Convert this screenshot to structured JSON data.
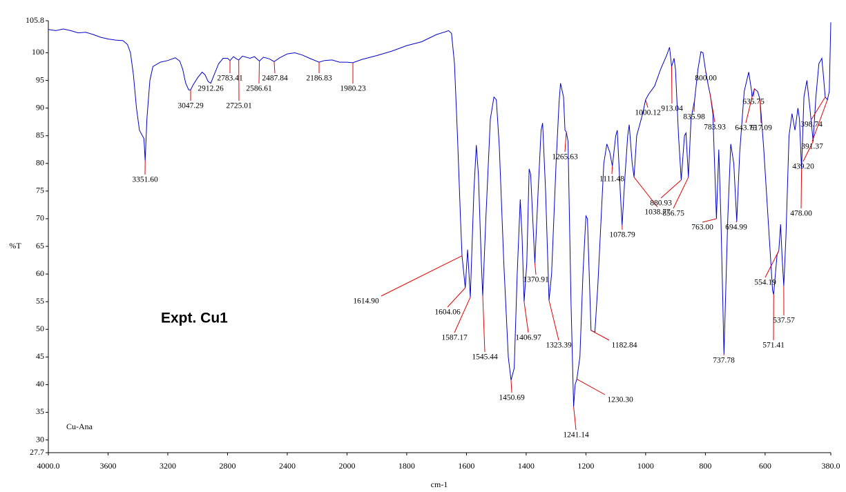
{
  "chart_data": {
    "type": "line",
    "xlabel": "cm-1",
    "ylabel": "%T",
    "annotations": [
      "Cu-Ana",
      "Expt. Cu1"
    ],
    "color": "#0000cc",
    "peak_color": "#e00000",
    "xlim": [
      4000,
      380
    ],
    "ylim": [
      27.7,
      105.8
    ],
    "xticks": [
      {
        "value": 4000,
        "label": "4000.0"
      },
      3600,
      3200,
      2800,
      2400,
      2000,
      1800,
      1600,
      1400,
      1200,
      1000,
      800,
      600,
      {
        "value": 380,
        "label": "380.0"
      }
    ],
    "yticks": [
      27.7,
      30,
      35,
      40,
      45,
      50,
      55,
      60,
      65,
      70,
      75,
      80,
      85,
      90,
      95,
      100,
      105.8
    ],
    "x": [
      4000,
      3950,
      3900,
      3850,
      3800,
      3750,
      3700,
      3650,
      3600,
      3550,
      3500,
      3470,
      3450,
      3430,
      3410,
      3390,
      3370,
      3360,
      3351.6,
      3340,
      3320,
      3300,
      3250,
      3200,
      3150,
      3120,
      3100,
      3080,
      3060,
      3047.29,
      3030,
      3000,
      2970,
      2950,
      2930,
      2912.26,
      2890,
      2860,
      2830,
      2800,
      2783.41,
      2760,
      2740,
      2725.01,
      2700,
      2650,
      2620,
      2586.61,
      2560,
      2520,
      2487.84,
      2450,
      2400,
      2350,
      2300,
      2250,
      2186.83,
      2150,
      2100,
      2050,
      2000,
      1980.23,
      1950,
      1900,
      1850,
      1800,
      1750,
      1700,
      1670,
      1660,
      1650,
      1640,
      1630,
      1620,
      1614.9,
      1604.06,
      1596,
      1587.17,
      1575,
      1567,
      1560,
      1550,
      1545.44,
      1535,
      1520,
      1508,
      1500,
      1490,
      1475,
      1460,
      1450.69,
      1440,
      1430,
      1420,
      1414,
      1406.97,
      1398,
      1390,
      1385,
      1378,
      1370.91,
      1360,
      1350,
      1345,
      1335,
      1323.39,
      1315,
      1300,
      1290,
      1285,
      1275,
      1270,
      1265.63,
      1260,
      1250,
      1241.14,
      1236,
      1230.3,
      1220,
      1210,
      1200,
      1195,
      1182.84,
      1170,
      1160,
      1140,
      1130,
      1120,
      1111.48,
      1100,
      1095,
      1085,
      1078.79,
      1070,
      1060,
      1055,
      1045,
      1038.77,
      1030,
      1010,
      1000.12,
      990,
      970,
      950,
      930,
      920,
      913.04,
      905,
      900,
      890,
      880.93,
      870,
      865,
      856.75,
      848,
      835.98,
      825,
      815,
      808,
      800,
      790,
      783.93,
      775,
      763,
      755,
      748,
      737.78,
      725,
      715,
      705,
      694.99,
      685,
      670,
      655,
      645,
      643.75,
      635.75,
      625,
      617.09,
      605,
      590,
      575,
      571.41,
      560,
      554.19,
      548,
      543,
      537.57,
      530,
      520,
      510,
      500,
      490,
      485,
      478,
      470,
      460,
      450,
      439.2,
      430,
      420,
      410,
      405,
      398.74,
      391.37,
      385,
      380
    ],
    "values": [
      104.2,
      104,
      104.3,
      104,
      103.6,
      103.7,
      103.3,
      102.8,
      102.5,
      102.3,
      102.2,
      101.5,
      100,
      96,
      90,
      86,
      85,
      84.5,
      80.5,
      88,
      95,
      97.5,
      98.3,
      98.6,
      99.1,
      98.5,
      97,
      94.5,
      93.3,
      93.3,
      94.2,
      95.5,
      96.5,
      96,
      94.8,
      94.5,
      96,
      98,
      99,
      99,
      98.6,
      99.3,
      98.9,
      98.7,
      99.4,
      99,
      99.3,
      98.5,
      99.2,
      98.9,
      98.4,
      99.1,
      99.8,
      100,
      99.6,
      99,
      98.3,
      98.6,
      98.7,
      98.3,
      98.3,
      98.2,
      98.8,
      99.5,
      100.3,
      101.3,
      102,
      103.3,
      103.8,
      104,
      103.5,
      98,
      85,
      70,
      63.3,
      57.5,
      64.4,
      55.8,
      75,
      83.3,
      78,
      62,
      56,
      70,
      88,
      92,
      91.5,
      83,
      62,
      45,
      40.8,
      43,
      60,
      73.5,
      67,
      55,
      62,
      79,
      78,
      70,
      62,
      75,
      86,
      87.3,
      75,
      55.2,
      60,
      80,
      91,
      94.5,
      92,
      86,
      85.7,
      84,
      55,
      36,
      40,
      41,
      45,
      60,
      70.5,
      70,
      49.8,
      49.5,
      58,
      80,
      83.5,
      82,
      79.5,
      85,
      86,
      75,
      68.8,
      77,
      85,
      87,
      80,
      77.5,
      85,
      89,
      91.5,
      92.5,
      94,
      97,
      99.5,
      101,
      97.5,
      99,
      97,
      85,
      77,
      85,
      85.5,
      77.5,
      88,
      91.5,
      97,
      100.2,
      100,
      97,
      94,
      92.5,
      89,
      70,
      82.5,
      70,
      45.5,
      70,
      83.5,
      80,
      69.5,
      82,
      93,
      96.5,
      93,
      92,
      93.5,
      93,
      91.5,
      83,
      70,
      57,
      56.3,
      63.5,
      64.2,
      69,
      63,
      57.8,
      67,
      85,
      89,
      86,
      90,
      88,
      79,
      92,
      95,
      90,
      84,
      92,
      98,
      99,
      96,
      92,
      91.5,
      93,
      105.5
    ],
    "peaks": [
      {
        "x": 3351.6,
        "label": "3351.60"
      },
      {
        "x": 3047.29,
        "label": "3047.29"
      },
      {
        "x": 2912.26,
        "label": "2912.26"
      },
      {
        "x": 2783.41,
        "label": "2783.41"
      },
      {
        "x": 2725.01,
        "label": "2725.01"
      },
      {
        "x": 2586.61,
        "label": "2586.61"
      },
      {
        "x": 2487.84,
        "label": "2487.84"
      },
      {
        "x": 2186.83,
        "label": "2186.83"
      },
      {
        "x": 1980.23,
        "label": "1980.23"
      },
      {
        "x": 1614.9,
        "label": "1614.90"
      },
      {
        "x": 1604.06,
        "label": "1604.06"
      },
      {
        "x": 1587.17,
        "label": "1587.17"
      },
      {
        "x": 1545.44,
        "label": "1545.44"
      },
      {
        "x": 1450.69,
        "label": "1450.69"
      },
      {
        "x": 1406.97,
        "label": "1406.97"
      },
      {
        "x": 1370.91,
        "label": "1370.91"
      },
      {
        "x": 1323.39,
        "label": "1323.39"
      },
      {
        "x": 1265.63,
        "label": "1265.63"
      },
      {
        "x": 1241.14,
        "label": "1241.14"
      },
      {
        "x": 1230.3,
        "label": "1230.30"
      },
      {
        "x": 1182.84,
        "label": "1182.84"
      },
      {
        "x": 1111.48,
        "label": "1111.48"
      },
      {
        "x": 1078.79,
        "label": "1078.79"
      },
      {
        "x": 1038.77,
        "label": "1038.77"
      },
      {
        "x": 1000.12,
        "label": "1000.12"
      },
      {
        "x": 913.04,
        "label": "913.04"
      },
      {
        "x": 880.93,
        "label": "880.93"
      },
      {
        "x": 856.75,
        "label": "856.75"
      },
      {
        "x": 835.98,
        "label": "835.98"
      },
      {
        "x": 800.0,
        "label": "800.00"
      },
      {
        "x": 783.93,
        "label": "783.93"
      },
      {
        "x": 763.0,
        "label": "763.00"
      },
      {
        "x": 737.78,
        "label": "737.78"
      },
      {
        "x": 694.99,
        "label": "694.99"
      },
      {
        "x": 643.75,
        "label": "643.75"
      },
      {
        "x": 635.75,
        "label": "635.75"
      },
      {
        "x": 617.09,
        "label": "617.09"
      },
      {
        "x": 571.41,
        "label": "571.41"
      },
      {
        "x": 554.19,
        "label": "554.19"
      },
      {
        "x": 537.57,
        "label": "537.57"
      },
      {
        "x": 478.0,
        "label": "478.00"
      },
      {
        "x": 439.2,
        "label": "439.20"
      },
      {
        "x": 398.74,
        "label": "398.74"
      },
      {
        "x": 391.37,
        "label": "391.37"
      }
    ]
  }
}
